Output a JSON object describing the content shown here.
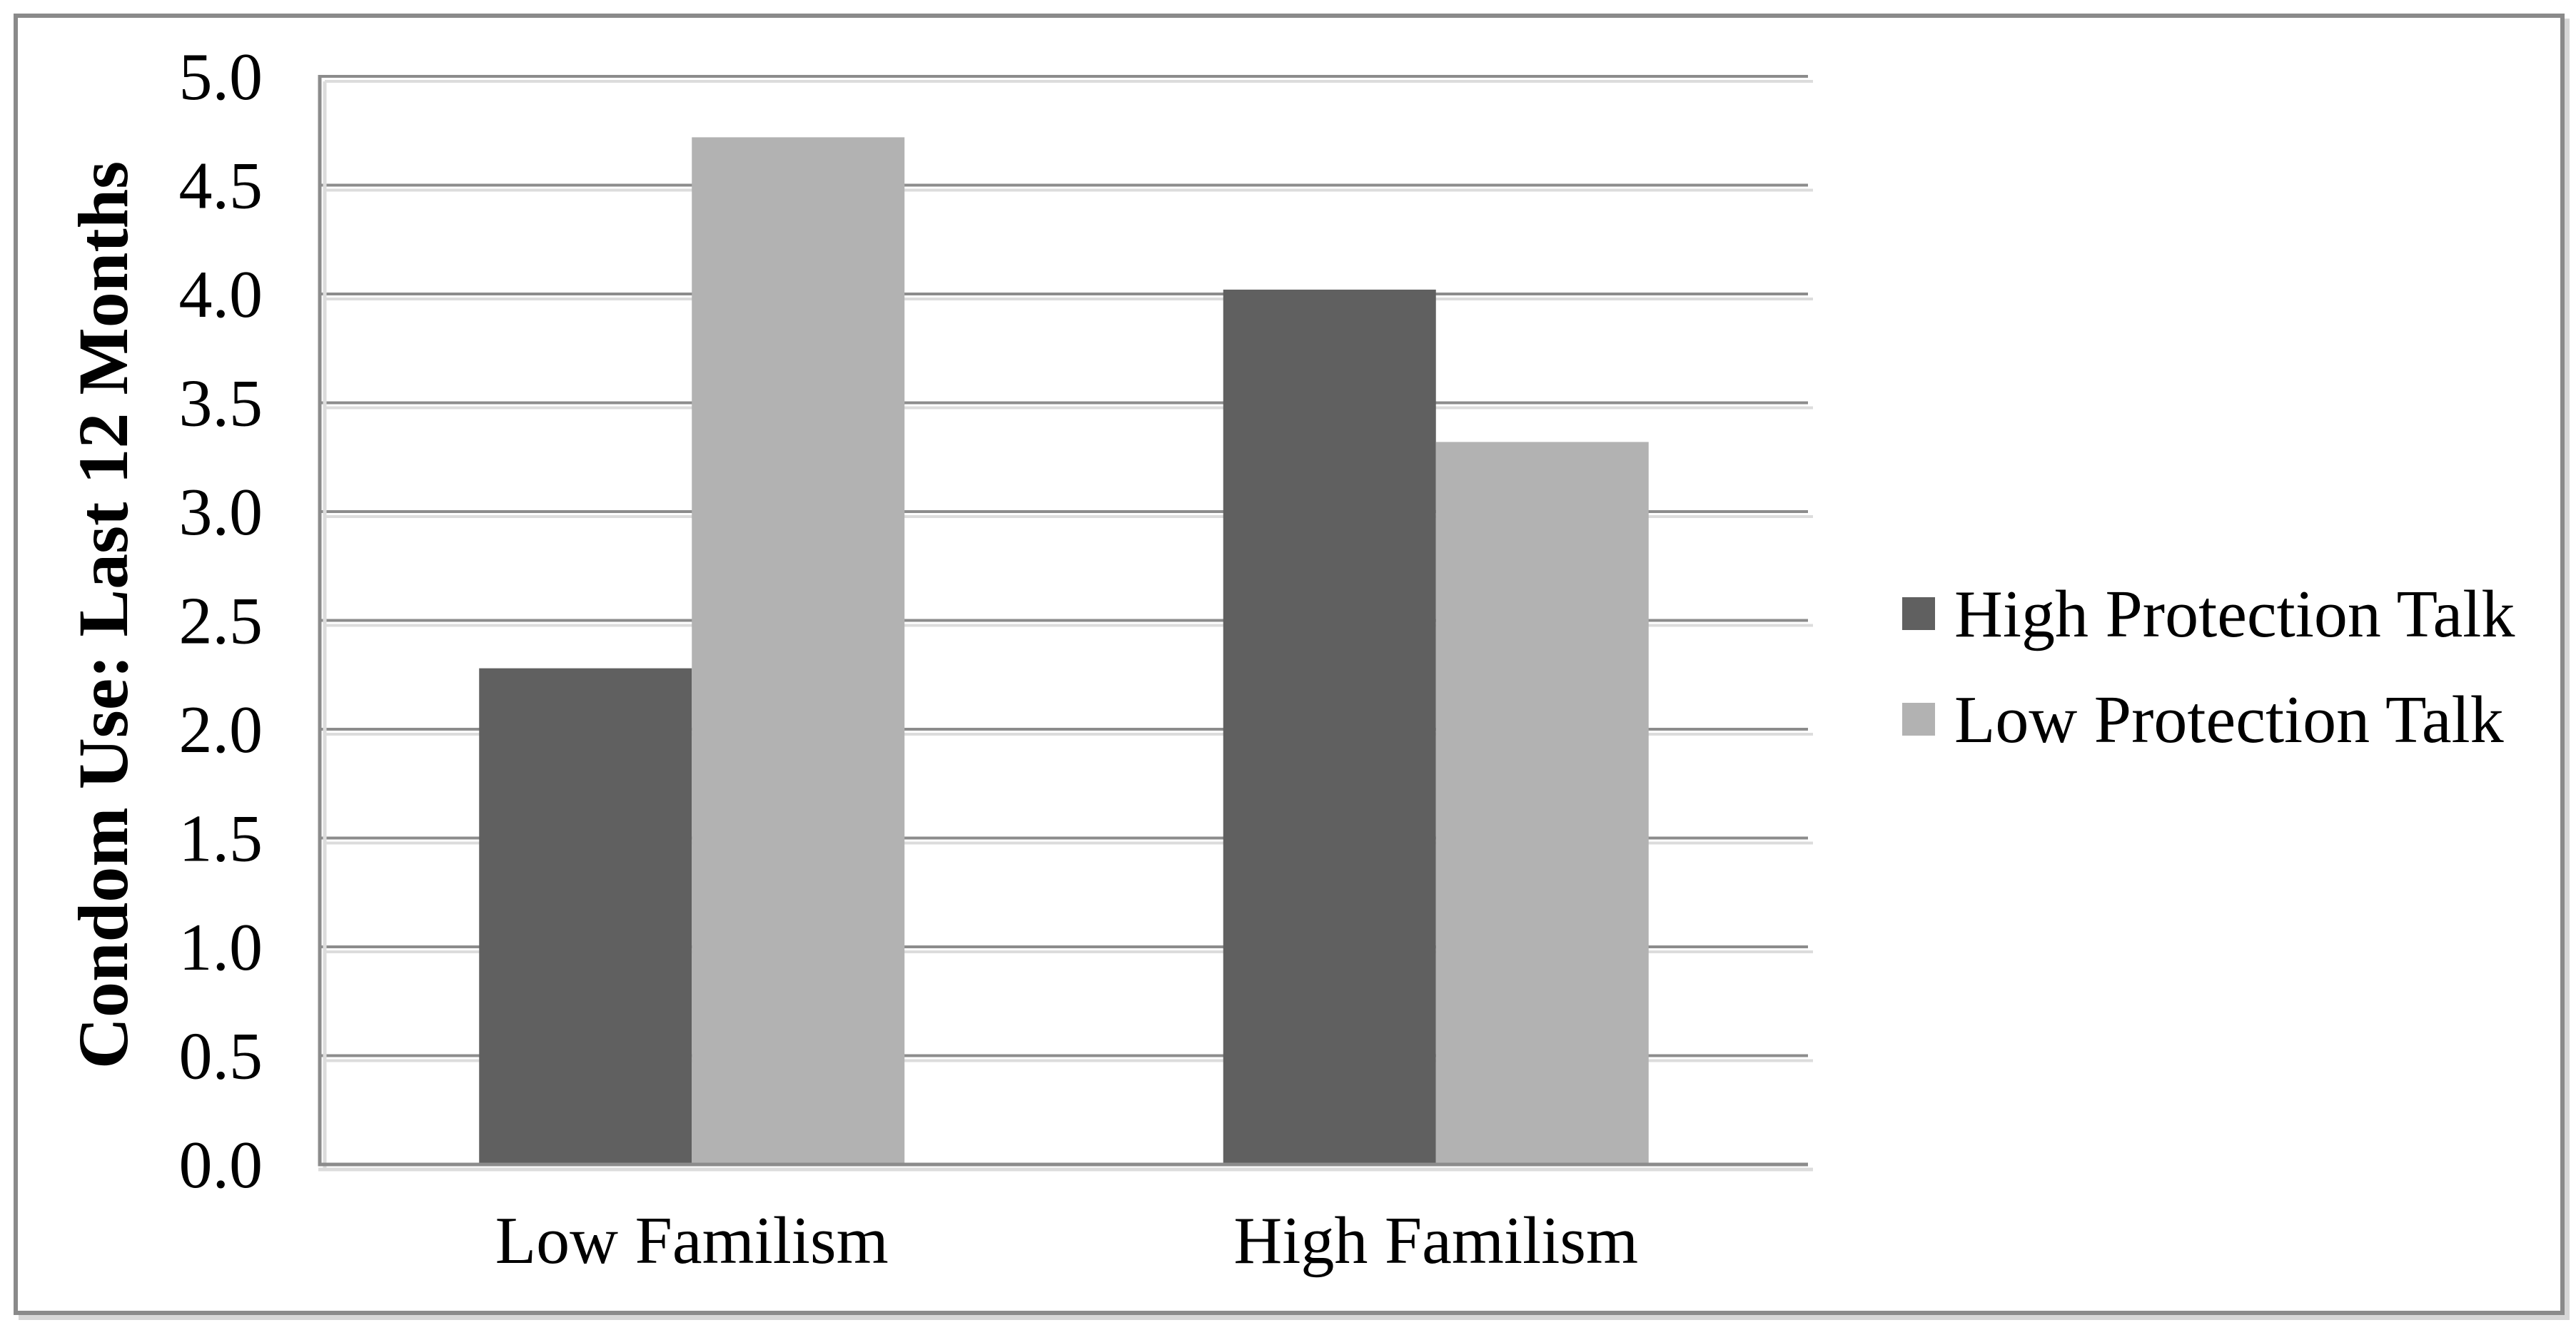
{
  "chart_data": {
    "type": "bar",
    "title": "",
    "ylabel": "Condom Use: Last 12 Months",
    "xlabel": "",
    "categories": [
      "Low Familism",
      "High Familism"
    ],
    "series": [
      {
        "name": "High Protection Talk",
        "color": "#606060",
        "values": [
          2.28,
          4.02
        ]
      },
      {
        "name": "Low Protection Talk",
        "color": "#b2b2b2",
        "values": [
          4.72,
          3.32
        ]
      }
    ],
    "ylim": [
      0,
      5
    ],
    "ytick_step": 0.5,
    "ytick_labels": [
      "0.0",
      "0.5",
      "1.0",
      "1.5",
      "2.0",
      "2.5",
      "3.0",
      "3.5",
      "4.0",
      "4.5",
      "5.0"
    ],
    "grid": "horizontal",
    "legend_position": "right"
  },
  "styles": {
    "background": "#ffffff",
    "frame_color": "#8a8a8a",
    "grid_color": "#8c8c8c",
    "axis_color": "#8c8c8c",
    "shadow_color": "#dcdcdc",
    "text_color": "#000000"
  }
}
